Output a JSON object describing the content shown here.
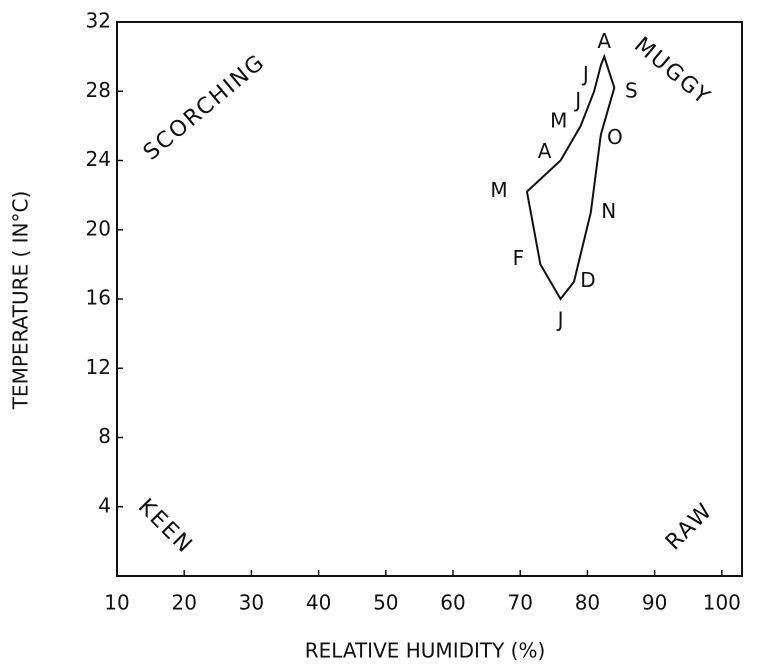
{
  "chart_data": {
    "type": "line",
    "x_label": "RELATIVE HUMIDITY (%)",
    "y_label": "TEMPERATURE ( IN°C)",
    "categories": [
      "J",
      "F",
      "M",
      "A",
      "M",
      "J",
      "J",
      "A",
      "S",
      "O",
      "N",
      "D"
    ],
    "x": [
      76,
      73,
      71,
      76,
      79,
      81,
      82,
      82.5,
      84,
      82,
      80.5,
      78
    ],
    "values": [
      16,
      18,
      22.2,
      24,
      26,
      28,
      29.5,
      30,
      28.2,
      25.5,
      21,
      17
    ],
    "color": "#111111",
    "xlim": [
      10,
      103
    ],
    "xticks": [
      10,
      20,
      30,
      40,
      50,
      60,
      70,
      80,
      90,
      100
    ],
    "ylim": [
      0,
      32
    ],
    "yticks": [
      4,
      8,
      12,
      16,
      20,
      24,
      28,
      32
    ],
    "annotations": [
      "SCORCHING",
      "MUGGY",
      "KEEN",
      "RAW"
    ]
  }
}
